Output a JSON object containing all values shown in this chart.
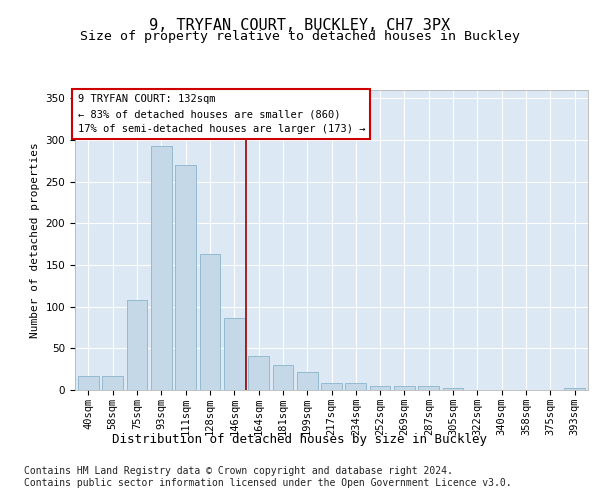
{
  "title": "9, TRYFAN COURT, BUCKLEY, CH7 3PX",
  "subtitle": "Size of property relative to detached houses in Buckley",
  "xlabel": "Distribution of detached houses by size in Buckley",
  "ylabel": "Number of detached properties",
  "footnote1": "Contains HM Land Registry data © Crown copyright and database right 2024.",
  "footnote2": "Contains public sector information licensed under the Open Government Licence v3.0.",
  "annotation_title": "9 TRYFAN COURT: 132sqm",
  "annotation_line1": "← 83% of detached houses are smaller (860)",
  "annotation_line2": "17% of semi-detached houses are larger (173) →",
  "categories": [
    "40sqm",
    "58sqm",
    "75sqm",
    "93sqm",
    "111sqm",
    "128sqm",
    "146sqm",
    "164sqm",
    "181sqm",
    "199sqm",
    "217sqm",
    "234sqm",
    "252sqm",
    "269sqm",
    "287sqm",
    "305sqm",
    "322sqm",
    "340sqm",
    "358sqm",
    "375sqm",
    "393sqm"
  ],
  "values": [
    17,
    17,
    108,
    293,
    270,
    163,
    86,
    41,
    30,
    22,
    8,
    8,
    5,
    5,
    5,
    3,
    0,
    0,
    0,
    0,
    2
  ],
  "bar_color": "#c5d8e8",
  "bar_edge_color": "#8ab4cc",
  "vline_color": "#990000",
  "vline_x": 6.5,
  "ylim": [
    0,
    360
  ],
  "yticks": [
    0,
    50,
    100,
    150,
    200,
    250,
    300,
    350
  ],
  "plot_bg_color": "#dce9f5",
  "grid_color": "#ffffff",
  "fig_bg_color": "#ffffff",
  "title_fontsize": 11,
  "subtitle_fontsize": 9.5,
  "ylabel_fontsize": 8,
  "xlabel_fontsize": 9,
  "tick_fontsize": 7.5,
  "annotation_fontsize": 7.5,
  "footnote_fontsize": 7
}
